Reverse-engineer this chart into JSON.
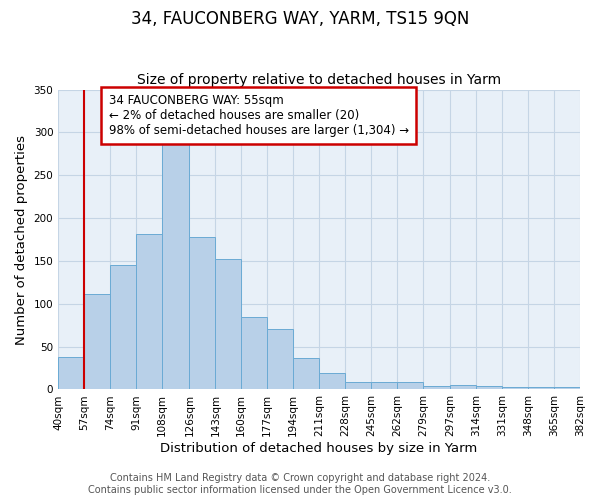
{
  "title": "34, FAUCONBERG WAY, YARM, TS15 9QN",
  "subtitle": "Size of property relative to detached houses in Yarm",
  "xlabel": "Distribution of detached houses by size in Yarm",
  "ylabel": "Number of detached properties",
  "bar_values": [
    38,
    111,
    145,
    181,
    287,
    178,
    152,
    85,
    70,
    37,
    19,
    9,
    9,
    9,
    4,
    5,
    4,
    3,
    3,
    3
  ],
  "bin_edges": [
    40,
    57,
    74,
    91,
    108,
    126,
    143,
    160,
    177,
    194,
    211,
    228,
    245,
    262,
    279,
    297,
    314,
    331,
    348,
    365,
    382
  ],
  "x_tick_labels": [
    "40sqm",
    "57sqm",
    "74sqm",
    "91sqm",
    "108sqm",
    "126sqm",
    "143sqm",
    "160sqm",
    "177sqm",
    "194sqm",
    "211sqm",
    "228sqm",
    "245sqm",
    "262sqm",
    "279sqm",
    "297sqm",
    "314sqm",
    "331sqm",
    "348sqm",
    "365sqm",
    "382sqm"
  ],
  "bar_color": "#b8d0e8",
  "bar_edge_color": "#6aaad4",
  "vline_x": 57,
  "vline_color": "#cc0000",
  "annotation_line1": "34 FAUCONBERG WAY: 55sqm",
  "annotation_line2": "← 2% of detached houses are smaller (20)",
  "annotation_line3": "98% of semi-detached houses are larger (1,304) →",
  "annotation_box_facecolor": "#ffffff",
  "annotation_box_edgecolor": "#cc0000",
  "ylim": [
    0,
    350
  ],
  "yticks": [
    0,
    50,
    100,
    150,
    200,
    250,
    300,
    350
  ],
  "footer_line1": "Contains HM Land Registry data © Crown copyright and database right 2024.",
  "footer_line2": "Contains public sector information licensed under the Open Government Licence v3.0.",
  "background_color": "#ffffff",
  "axes_bg_color": "#e8f0f8",
  "grid_color": "#c5d5e5",
  "title_fontsize": 12,
  "subtitle_fontsize": 10,
  "axis_label_fontsize": 9.5,
  "tick_fontsize": 7.5,
  "annotation_fontsize": 8.5,
  "footer_fontsize": 7
}
